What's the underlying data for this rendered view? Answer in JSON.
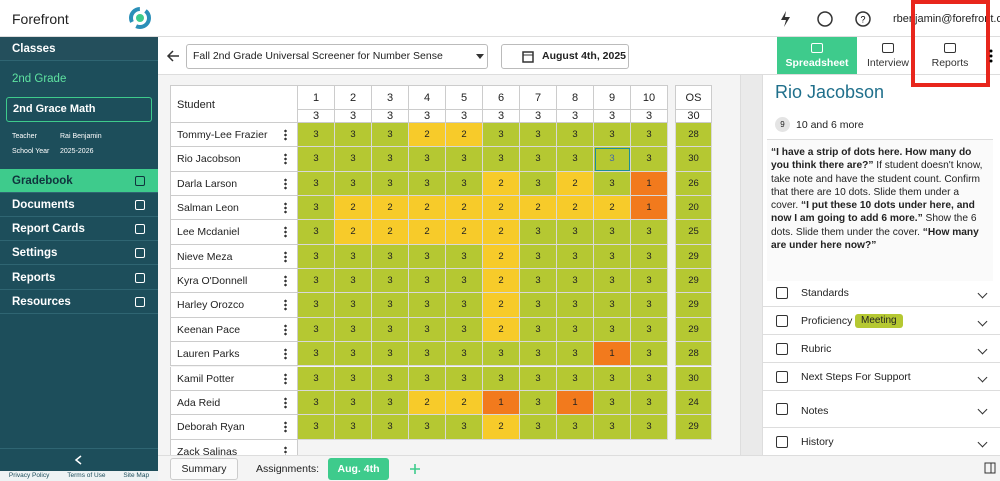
{
  "app": {
    "name": "Forefront",
    "user": "rbenjamin@forefront.org"
  },
  "sidebar": {
    "classes": "Classes",
    "grade": "2nd Grade",
    "class_select": "2nd Grace Math",
    "teacher_label": "Teacher",
    "teacher": "Rai Benjamin",
    "year_label": "School Year",
    "year": "2025-2026",
    "nav": [
      "Gradebook",
      "Documents",
      "Report Cards",
      "Settings",
      "Reports",
      "Resources"
    ],
    "active_nav": 0,
    "footer": [
      "Privacy Policy",
      "Terms of Use",
      "Site Map"
    ]
  },
  "toolbar": {
    "assessment": "Fall 2nd Grade Universal Screener for Number Sense",
    "date": "August 4th, 2025",
    "tabs": [
      "Spreadsheet",
      "Interview",
      "Reports"
    ],
    "active_tab": 0
  },
  "table": {
    "student_header": "Student",
    "items": [
      1,
      2,
      3,
      4,
      5,
      6,
      7,
      8,
      9,
      10
    ],
    "max_scores": [
      3,
      3,
      3,
      3,
      3,
      3,
      3,
      3,
      3,
      3
    ],
    "total_header": "OS",
    "total_max": 30,
    "rows": [
      {
        "name": "Tommy-Lee Frazier",
        "scores": [
          3,
          3,
          3,
          2,
          2,
          3,
          3,
          3,
          3,
          3
        ],
        "total": 28
      },
      {
        "name": "Rio Jacobson",
        "scores": [
          3,
          3,
          3,
          3,
          3,
          3,
          3,
          3,
          3,
          3
        ],
        "total": 30
      },
      {
        "name": "Darla Larson",
        "scores": [
          3,
          3,
          3,
          3,
          3,
          2,
          3,
          2,
          3,
          1
        ],
        "total": 26
      },
      {
        "name": "Salman Leon",
        "scores": [
          3,
          2,
          2,
          2,
          2,
          2,
          2,
          2,
          2,
          1
        ],
        "total": 20
      },
      {
        "name": "Lee Mcdaniel",
        "scores": [
          3,
          2,
          2,
          2,
          2,
          2,
          3,
          3,
          3,
          3
        ],
        "total": 25
      },
      {
        "name": "Nieve Meza",
        "scores": [
          3,
          3,
          3,
          3,
          3,
          2,
          3,
          3,
          3,
          3
        ],
        "total": 29
      },
      {
        "name": "Kyra O'Donnell",
        "scores": [
          3,
          3,
          3,
          3,
          3,
          2,
          3,
          3,
          3,
          3
        ],
        "total": 29
      },
      {
        "name": "Harley Orozco",
        "scores": [
          3,
          3,
          3,
          3,
          3,
          2,
          3,
          3,
          3,
          3
        ],
        "total": 29
      },
      {
        "name": "Keenan Pace",
        "scores": [
          3,
          3,
          3,
          3,
          3,
          2,
          3,
          3,
          3,
          3
        ],
        "total": 29
      },
      {
        "name": "Lauren Parks",
        "scores": [
          3,
          3,
          3,
          3,
          3,
          3,
          3,
          3,
          1,
          3
        ],
        "total": 28
      },
      {
        "name": "Kamil Potter",
        "scores": [
          3,
          3,
          3,
          3,
          3,
          3,
          3,
          3,
          3,
          3
        ],
        "total": 30
      },
      {
        "name": "Ada Reid",
        "scores": [
          3,
          3,
          3,
          2,
          2,
          1,
          3,
          1,
          3,
          3
        ],
        "total": 24
      },
      {
        "name": "Deborah Ryan",
        "scores": [
          3,
          3,
          3,
          3,
          3,
          2,
          3,
          3,
          3,
          3
        ],
        "total": 29
      },
      {
        "name": "Zack Salinas"
      }
    ],
    "selected": {
      "row": 1,
      "item": 8
    }
  },
  "panel": {
    "student": "Rio Jacobson",
    "item_number": 9,
    "item_title": "10 and 6 more",
    "prompt": [
      {
        "text": "“I have a strip of dots here. How many do you think there are?”",
        "bold": true
      },
      {
        "text": " If student doesn't know, take note and have the student count. Confirm that there are 10 dots. Slide them under a cover. ",
        "bold": false
      },
      {
        "text": "“I put these 10 dots under here, and now I am going to add 6 more.”",
        "bold": true
      },
      {
        "text": " Show the 6 dots. Slide them under the cover. ",
        "bold": false
      },
      {
        "text": "“How many are under here now?”",
        "bold": true
      }
    ],
    "sections": [
      "Standards",
      "Proficiency",
      "Rubric",
      "Next Steps For Support",
      "Notes",
      "History"
    ],
    "proficiency": "Meeting"
  },
  "footer": {
    "summary": "Summary",
    "assignments_label": "Assignments:",
    "assignment": "Aug. 4th"
  }
}
